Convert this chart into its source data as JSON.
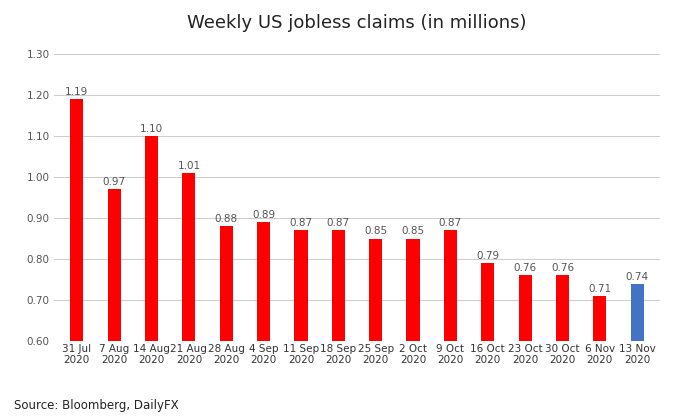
{
  "title": "Weekly US jobless claims (in millions)",
  "categories": [
    "31 Jul\n2020",
    "7 Aug\n2020",
    "14 Aug\n2020",
    "21 Aug\n2020",
    "28 Aug\n2020",
    "4 Sep\n2020",
    "11 Sep\n2020",
    "18 Sep\n2020",
    "25 Sep\n2020",
    "2 Oct\n2020",
    "9 Oct\n2020",
    "16 Oct\n2020",
    "23 Oct\n2020",
    "30 Oct\n2020",
    "6 Nov\n2020",
    "13 Nov\n2020"
  ],
  "values": [
    1.19,
    0.97,
    1.1,
    1.01,
    0.88,
    0.89,
    0.87,
    0.87,
    0.85,
    0.85,
    0.87,
    0.79,
    0.76,
    0.76,
    0.71,
    0.74
  ],
  "bar_colors": [
    "#ff0000",
    "#ff0000",
    "#ff0000",
    "#ff0000",
    "#ff0000",
    "#ff0000",
    "#ff0000",
    "#ff0000",
    "#ff0000",
    "#ff0000",
    "#ff0000",
    "#ff0000",
    "#ff0000",
    "#ff0000",
    "#ff0000",
    "#4472c4"
  ],
  "ylim": [
    0.6,
    1.33
  ],
  "yticks": [
    0.6,
    0.7,
    0.8,
    0.9,
    1.0,
    1.1,
    1.2,
    1.3
  ],
  "source_text": "Source: Bloomberg, DailyFX",
  "background_color": "#ffffff",
  "label_fontsize": 7.5,
  "title_fontsize": 13,
  "tick_fontsize": 7.5,
  "bar_width": 0.35
}
